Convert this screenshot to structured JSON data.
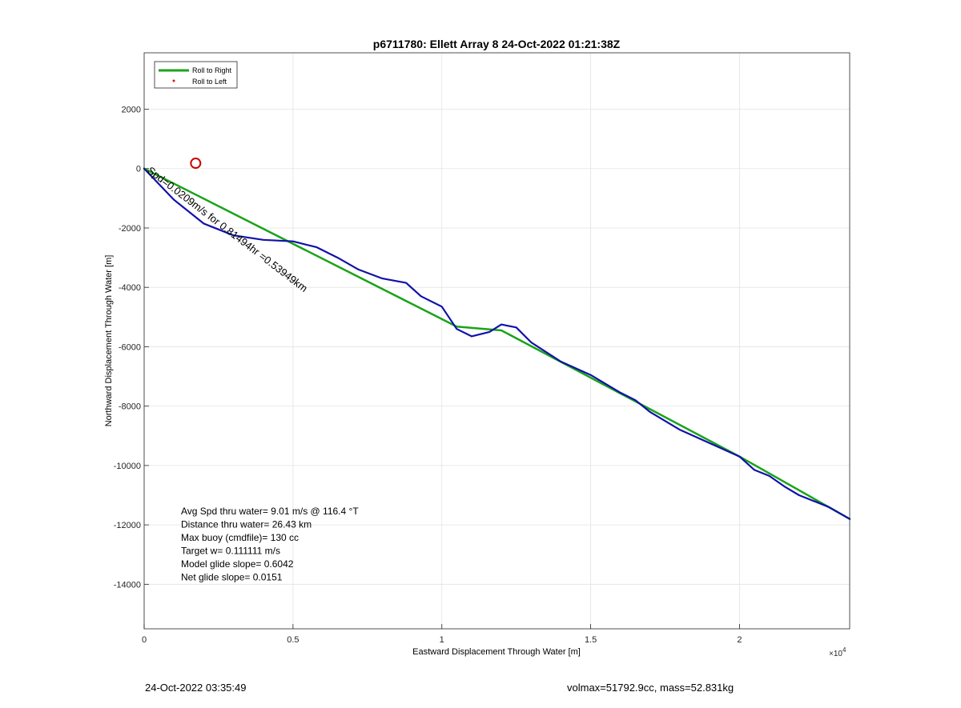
{
  "chart_data": {
    "type": "line",
    "title": "p6711780: Ellett Array 8 24-Oct-2022 01:21:38Z",
    "xlabel": "Eastward Displacement Through Water [m]",
    "ylabel": "Northward Displacement Through Water [m]",
    "x_exponent_label": "×10",
    "x_exponent": "4",
    "xlim": [
      0,
      23700
    ],
    "ylim": [
      -15500,
      3900
    ],
    "x_ticks": [
      0,
      5000,
      10000,
      15000,
      20000
    ],
    "x_tick_labels": [
      "0",
      "0.5",
      "1",
      "1.5",
      "2"
    ],
    "y_ticks": [
      2000,
      0,
      -2000,
      -4000,
      -6000,
      -8000,
      -10000,
      -12000,
      -14000
    ],
    "y_tick_labels": [
      "2000",
      "0",
      "-2000",
      "-4000",
      "-6000",
      "-8000",
      "-10000",
      "-12000",
      "-14000"
    ],
    "grid": true,
    "legend": {
      "placement": "top-left",
      "entries": [
        {
          "label": "Roll to Right",
          "color": "#1aa31a",
          "marker": "line"
        },
        {
          "label": "Roll to Left",
          "color": "#dd1111",
          "marker": "dot"
        }
      ]
    },
    "series": [
      {
        "name": "Roll to Right",
        "color": "#1aa31a",
        "x": [
          0,
          10500,
          12000,
          20000,
          23700
        ],
        "y": [
          0,
          -5320,
          -5450,
          -9700,
          -11800
        ]
      },
      {
        "color": "#1111aa",
        "x": [
          0,
          1000,
          2000,
          3000,
          4000,
          5000,
          5800,
          6500,
          7200,
          8000,
          8800,
          9300,
          10000,
          10500,
          11000,
          11600,
          12000,
          12500,
          13000,
          14000,
          15000,
          16000,
          16500,
          17000,
          18000,
          19000,
          20000,
          20500,
          21000,
          21500,
          22000,
          23000,
          23700
        ],
        "y": [
          0,
          -1050,
          -1850,
          -2250,
          -2400,
          -2450,
          -2650,
          -3000,
          -3400,
          -3700,
          -3850,
          -4300,
          -4650,
          -5400,
          -5650,
          -5500,
          -5250,
          -5350,
          -5850,
          -6500,
          -6950,
          -7550,
          -7800,
          -8200,
          -8800,
          -9250,
          -9700,
          -10150,
          -10350,
          -10700,
          -11000,
          -11400,
          -11800
        ]
      }
    ],
    "markers": [
      {
        "type": "circle",
        "x": 1730,
        "y": 180,
        "color": "#cc0000"
      }
    ],
    "annotation": "Spd=0.0209m/s for 0.81494hr =0.53949km",
    "stats": [
      "Avg Spd thru water=  9.01 m/s @ 116.4 °T",
      "Distance thru water= 26.43 km",
      "Max buoy (cmdfile)= 130 cc",
      "Target w= 0.111111 m/s",
      "Model glide slope= 0.6042",
      "Net glide slope= 0.0151"
    ]
  },
  "footer": {
    "timestamp": "24-Oct-2022 03:35:49",
    "summary": "volmax=51792.9cc, mass=52.831kg"
  }
}
